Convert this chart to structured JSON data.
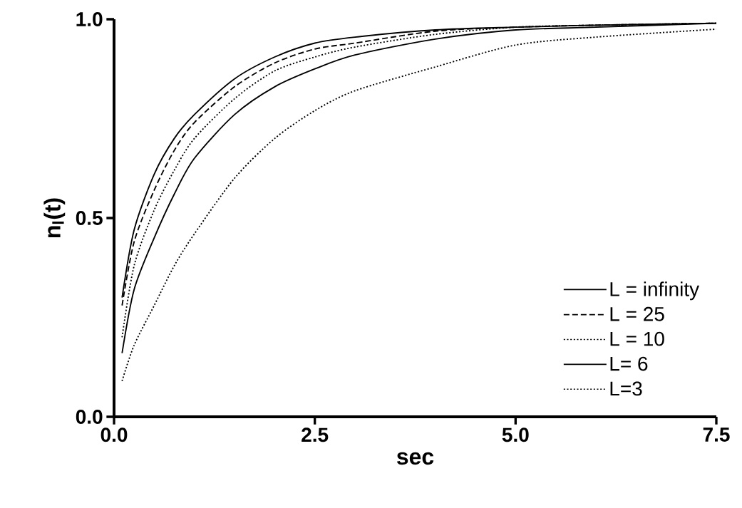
{
  "chart_data": {
    "type": "line",
    "xlabel": "sec",
    "ylabel": "n$_{l}$(t)",
    "x": [
      0.1,
      0.25,
      0.5,
      0.75,
      1,
      1.5,
      2,
      2.5,
      3,
      4,
      5,
      6,
      7.5
    ],
    "xlim": [
      0,
      7.5
    ],
    "ylim": [
      0,
      1
    ],
    "xticks": [
      {
        "value": 0,
        "label": "0.0"
      },
      {
        "value": 2.5,
        "label": "2.5"
      },
      {
        "value": 5,
        "label": "5.0"
      },
      {
        "value": 7.5,
        "label": "7.5"
      }
    ],
    "yticks": [
      {
        "value": 0,
        "label": "0.0"
      },
      {
        "value": 0.5,
        "label": "0.5"
      },
      {
        "value": 1,
        "label": "1.0"
      }
    ],
    "legend": "bottom right",
    "grid": false,
    "marker": "none",
    "series": [
      {
        "name": "L = infinity",
        "color": "#000000",
        "line_style": "solid",
        "values": [
          0.3,
          0.47,
          0.61,
          0.7,
          0.76,
          0.85,
          0.905,
          0.94,
          0.955,
          0.973,
          0.98,
          0.985,
          0.99
        ]
      },
      {
        "name": "L = 25",
        "color": "#000000",
        "line_style": "dashed",
        "values": [
          0.28,
          0.44,
          0.57,
          0.67,
          0.74,
          0.83,
          0.89,
          0.925,
          0.94,
          0.97,
          0.98,
          0.985,
          0.99
        ]
      },
      {
        "name": "L = 10",
        "color": "#000000",
        "line_style": "dotted",
        "values": [
          0.2,
          0.38,
          0.52,
          0.62,
          0.7,
          0.8,
          0.87,
          0.905,
          0.93,
          0.962,
          0.98,
          0.985,
          0.99
        ]
      },
      {
        "name": "L= 6",
        "color": "#000000",
        "line_style": "solid",
        "values": [
          0.16,
          0.32,
          0.45,
          0.56,
          0.65,
          0.76,
          0.83,
          0.875,
          0.91,
          0.95,
          0.973,
          0.98,
          0.99
        ]
      },
      {
        "name": "L=3",
        "color": "#000000",
        "line_style": "dotted",
        "values": [
          0.09,
          0.18,
          0.28,
          0.38,
          0.46,
          0.6,
          0.7,
          0.77,
          0.82,
          0.88,
          0.935,
          0.955,
          0.975
        ]
      }
    ]
  }
}
